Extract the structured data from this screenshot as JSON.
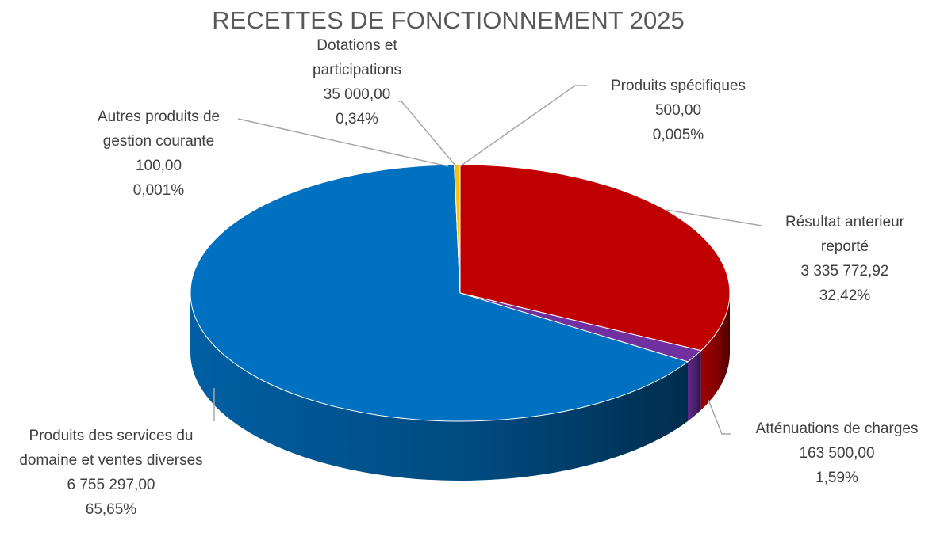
{
  "chart_data": {
    "type": "pie",
    "title": "RECETTES DE FONCTIONNEMENT 2025",
    "categories": [
      "Résultat anterieur reporté",
      "Atténuations de charges",
      "Produits des services du domaine et ventes diverses",
      "Autres produits de gestion courante",
      "Dotations et participations",
      "Produits spécifiques"
    ],
    "values": [
      3335772.92,
      163500,
      6755297,
      100,
      35000,
      500
    ],
    "value_labels": [
      "3 335 772,92",
      "163 500,00",
      "6 755 297,00",
      "100,00",
      "35 000,00",
      "500,00"
    ],
    "percentages": [
      32.42,
      1.59,
      65.65,
      0.001,
      0.34,
      0.005
    ],
    "percentage_labels": [
      "32,42%",
      "1,59%",
      "65,65%",
      "0,001%",
      "0,34%",
      "0,005%"
    ],
    "colors": [
      "#c00000",
      "#7030a0",
      "#0070c0",
      "#a5a5a5",
      "#ffc000",
      "#70ad47"
    ]
  }
}
